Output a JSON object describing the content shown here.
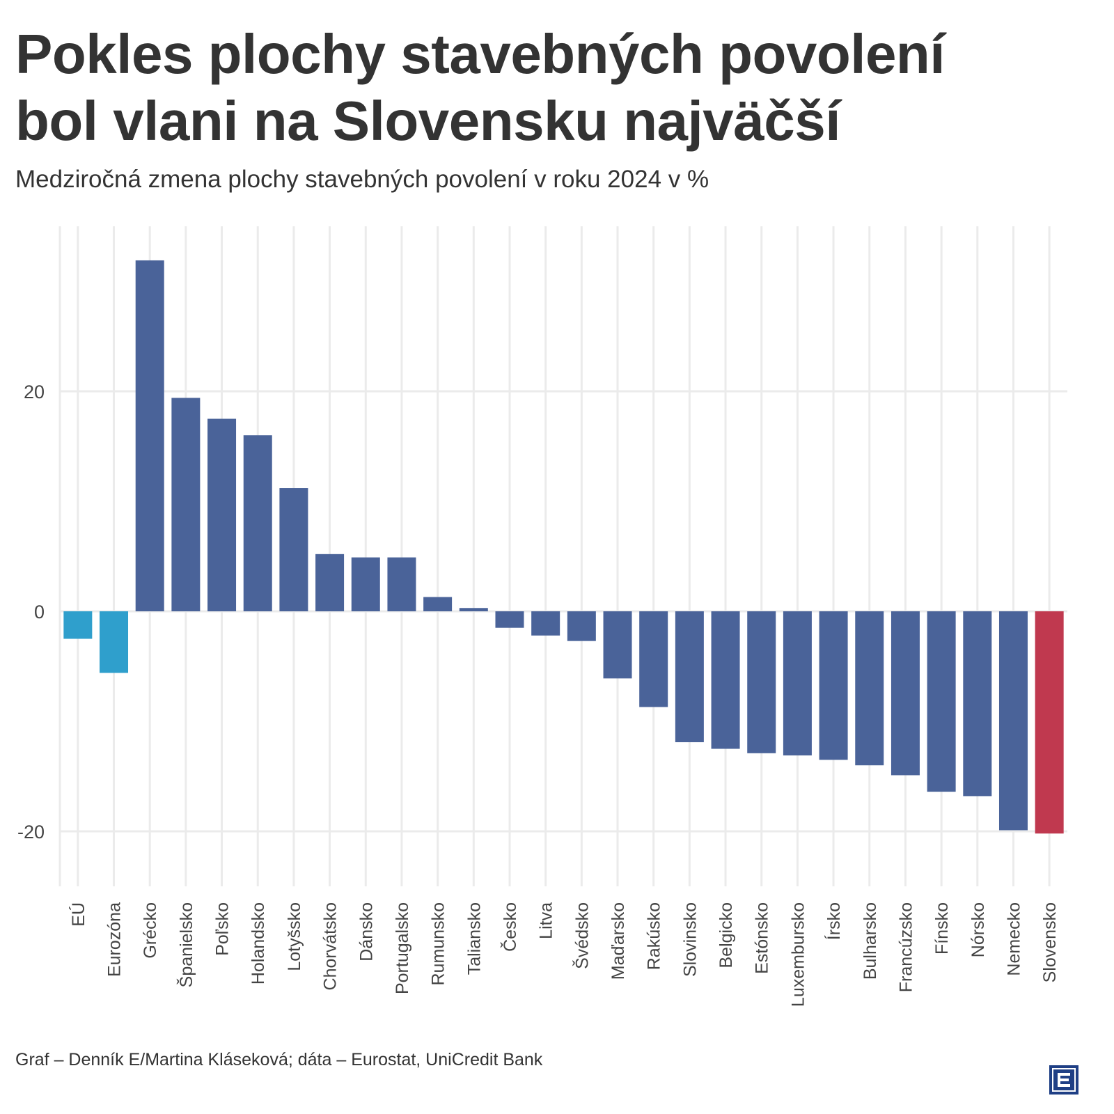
{
  "title_line1": "Pokles plochy stavebných povolení",
  "title_line2": "bol vlani na Slovensku najväčší",
  "subtitle": "Medziročná zmena plochy stavebných povolení v roku 2024 v %",
  "footer": "Graf – Denník E/Martina Kláseková; dáta – Eurostat, UniCredit Bank",
  "logo": "E",
  "colors": {
    "country": "#4a6399",
    "aggregate": "#2f9fcc",
    "slovakia": "#c0394f",
    "grid": "#ebebeb"
  },
  "chart_data": {
    "type": "bar",
    "categories": [
      "EÚ",
      "Eurozóna",
      "Grécko",
      "Španielsko",
      "Poľsko",
      "Holandsko",
      "Lotyšsko",
      "Chorvátsko",
      "Dánsko",
      "Portugalsko",
      "Rumunsko",
      "Taliansko",
      "Česko",
      "Litva",
      "Švédsko",
      "Maďarsko",
      "Rakúsko",
      "Slovinsko",
      "Belgicko",
      "Estónsko",
      "Luxembursko",
      "Írsko",
      "Bulharsko",
      "Francúzsko",
      "Fínsko",
      "Nórsko",
      "Nemecko",
      "Slovensko"
    ],
    "values": [
      -2.5,
      -5.6,
      31.9,
      19.4,
      17.5,
      16.0,
      11.2,
      5.2,
      4.9,
      4.9,
      1.3,
      0.3,
      -1.5,
      -2.2,
      -2.7,
      -6.1,
      -8.7,
      -11.9,
      -12.5,
      -12.9,
      -13.1,
      -13.5,
      -14.0,
      -14.9,
      -16.4,
      -16.8,
      -19.9,
      -20.2
    ],
    "groups": [
      "aggregate",
      "aggregate",
      "country",
      "country",
      "country",
      "country",
      "country",
      "country",
      "country",
      "country",
      "country",
      "country",
      "country",
      "country",
      "country",
      "country",
      "country",
      "country",
      "country",
      "country",
      "country",
      "country",
      "country",
      "country",
      "country",
      "country",
      "country",
      "slovakia"
    ],
    "yticks": [
      -20,
      0,
      20
    ],
    "ylim": [
      -25,
      35
    ],
    "grid": true,
    "xlabel": "",
    "ylabel": ""
  }
}
